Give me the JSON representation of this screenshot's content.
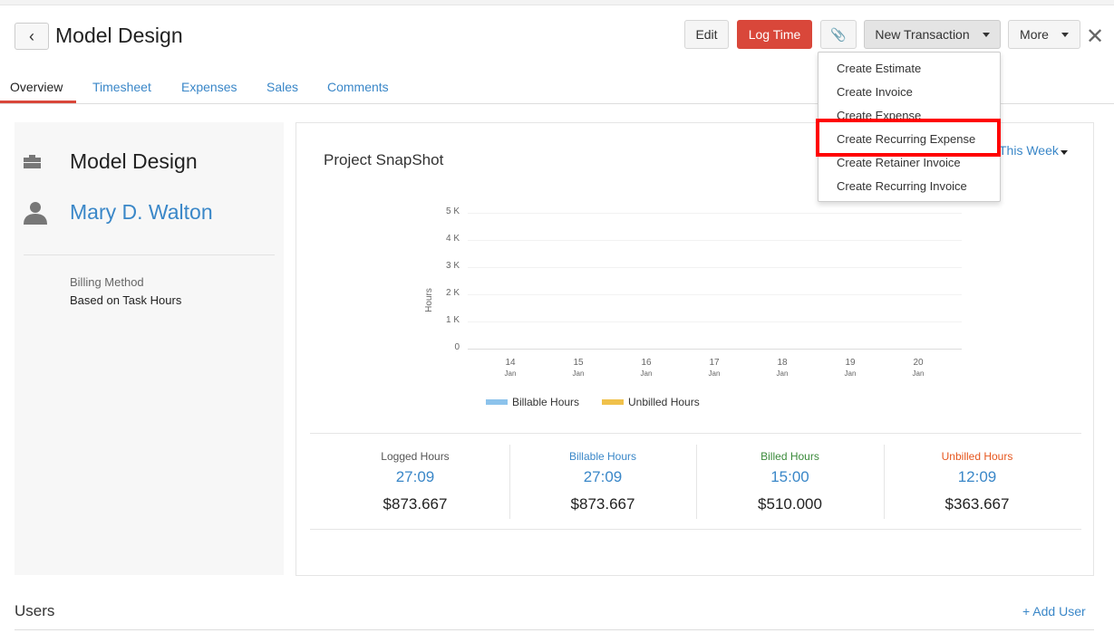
{
  "header": {
    "title": "Model Design",
    "edit": "Edit",
    "log_time": "Log Time",
    "new_transaction": "New Transaction",
    "more": "More"
  },
  "tabs": [
    {
      "label": "Overview"
    },
    {
      "label": "Timesheet"
    },
    {
      "label": "Expenses"
    },
    {
      "label": "Sales"
    },
    {
      "label": "Comments"
    }
  ],
  "menu": [
    "Create Estimate",
    "Create Invoice",
    "Create Expense",
    "Create Recurring Expense",
    "Create Retainer Invoice",
    "Create Recurring Invoice"
  ],
  "project": {
    "name": "Model Design",
    "customer": "Mary D. Walton",
    "billing_label": "Billing Method",
    "billing_value": "Based on Task Hours"
  },
  "snapshot": {
    "title": "Project SnapShot",
    "period": "This Week"
  },
  "chart_data": {
    "type": "bar",
    "ylabel": "Hours",
    "yticks": [
      "5 K",
      "4 K",
      "3 K",
      "2 K",
      "1 K",
      "0"
    ],
    "ylim": [
      0,
      5000
    ],
    "categories": [
      {
        "d": "14",
        "m": "Jan"
      },
      {
        "d": "15",
        "m": "Jan"
      },
      {
        "d": "16",
        "m": "Jan"
      },
      {
        "d": "17",
        "m": "Jan"
      },
      {
        "d": "18",
        "m": "Jan"
      },
      {
        "d": "19",
        "m": "Jan"
      },
      {
        "d": "20",
        "m": "Jan"
      }
    ],
    "series": [
      {
        "name": "Billable Hours",
        "color": "#8cc3ec",
        "values": [
          0,
          0,
          0,
          0,
          0,
          0,
          0
        ]
      },
      {
        "name": "Unbilled Hours",
        "color": "#f0c14b",
        "values": [
          0,
          0,
          0,
          0,
          0,
          0,
          0
        ]
      }
    ],
    "legend": "bottom",
    "grid": true
  },
  "stats": [
    {
      "label": "Logged Hours",
      "color": "#555555",
      "hours": "27:09",
      "amount": "$873.667"
    },
    {
      "label": "Billable Hours",
      "color": "#3a87c8",
      "hours": "27:09",
      "amount": "$873.667"
    },
    {
      "label": "Billed Hours",
      "color": "#3b8a3b",
      "hours": "15:00",
      "amount": "$510.000"
    },
    {
      "label": "Unbilled Hours",
      "color": "#e6561e",
      "hours": "12:09",
      "amount": "$363.667"
    }
  ],
  "users": {
    "title": "Users",
    "add": "+ Add User"
  }
}
